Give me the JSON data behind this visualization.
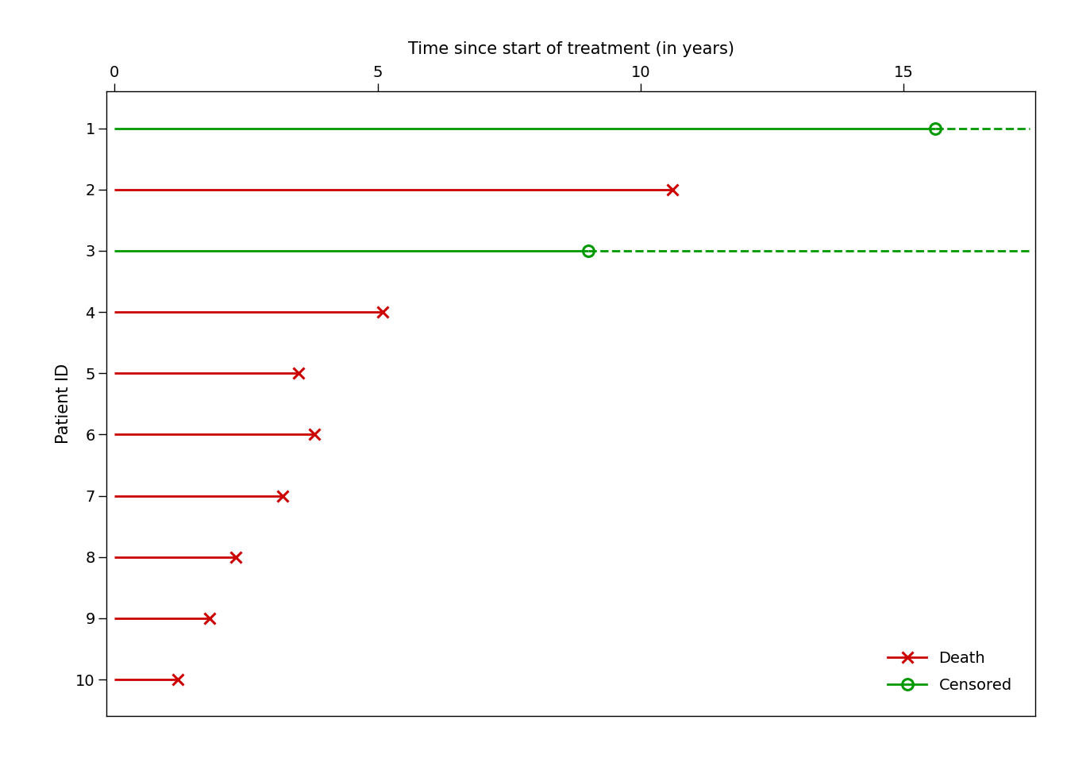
{
  "title": "Time since start of treatment (in years)",
  "ylabel": "Patient ID",
  "xlim": [
    -0.15,
    17.5
  ],
  "xticks": [
    0,
    5,
    10,
    15
  ],
  "ylim": [
    0.4,
    10.6
  ],
  "yticks": [
    1,
    2,
    3,
    4,
    5,
    6,
    7,
    8,
    9,
    10
  ],
  "patients": [
    {
      "id": 1,
      "type": "censored",
      "solid_end": 15.6,
      "dashed_end": 17.4
    },
    {
      "id": 2,
      "type": "death",
      "solid_end": 10.6
    },
    {
      "id": 3,
      "type": "censored",
      "solid_end": 9.0,
      "dashed_end": 17.4
    },
    {
      "id": 4,
      "type": "death",
      "solid_end": 5.1
    },
    {
      "id": 5,
      "type": "death",
      "solid_end": 3.5
    },
    {
      "id": 6,
      "type": "death",
      "solid_end": 3.8
    },
    {
      "id": 7,
      "type": "death",
      "solid_end": 3.2
    },
    {
      "id": 8,
      "type": "death",
      "solid_end": 2.3
    },
    {
      "id": 9,
      "type": "death",
      "solid_end": 1.8
    },
    {
      "id": 10,
      "type": "death",
      "solid_end": 1.2
    }
  ],
  "death_color": "#CC0000",
  "censored_color": "#009900",
  "linewidth": 2.0,
  "markersize": 10,
  "death_marker": "x",
  "censored_marker": "o",
  "legend_death": "Death",
  "legend_censored": "Censored",
  "background_color": "#FFFFFF",
  "marker_linewidth": 2.2
}
